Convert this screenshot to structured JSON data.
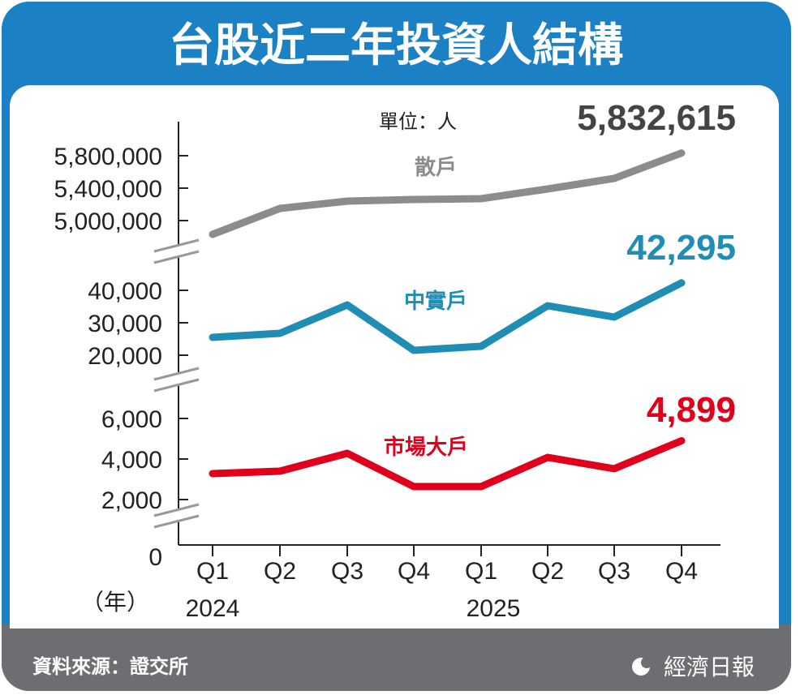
{
  "title": "台股近二年投資人結構",
  "unit": "單位：人",
  "footer": {
    "source": "資料來源：證交所",
    "brand": "經濟日報"
  },
  "colors": {
    "frame": "#1b80c4",
    "footer": "#6d6e71",
    "retail": "#8c8c8c",
    "mid": "#1f8db4",
    "large": "#e0001b"
  },
  "chart_data": {
    "type": "line",
    "title": "台股近二年投資人結構",
    "unit": "單位：人",
    "x_label": "（年）",
    "categories": [
      "Q1",
      "Q2",
      "Q3",
      "Q4",
      "Q1",
      "Q2",
      "Q3",
      "Q4"
    ],
    "years": [
      {
        "label": "2024",
        "index": 0
      },
      {
        "label": "2025",
        "index": 4
      }
    ],
    "zero_label": "0",
    "series": [
      {
        "name": "散戶",
        "key": "retail",
        "values": [
          4830000,
          5150000,
          5240000,
          5260000,
          5270000,
          5390000,
          5520000,
          5832615
        ],
        "last_label": "5,832,615",
        "ticks": [
          {
            "v": 5800000,
            "label": "5,800,000"
          },
          {
            "v": 5400000,
            "label": "5,400,000"
          },
          {
            "v": 5000000,
            "label": "5,000,000"
          }
        ]
      },
      {
        "name": "中實戶",
        "key": "mid",
        "values": [
          25500,
          26750,
          35500,
          21500,
          22750,
          35250,
          31750,
          42295
        ],
        "last_label": "42,295",
        "ticks": [
          {
            "v": 40000,
            "label": "40,000"
          },
          {
            "v": 30000,
            "label": "30,000"
          },
          {
            "v": 20000,
            "label": "20,000"
          }
        ]
      },
      {
        "name": "市場大戶",
        "key": "large",
        "values": [
          3280,
          3400,
          4280,
          2640,
          2640,
          4080,
          3520,
          4899
        ],
        "last_label": "4,899",
        "ticks": [
          {
            "v": 6000,
            "label": "6,000"
          },
          {
            "v": 4000,
            "label": "4,000"
          },
          {
            "v": 2000,
            "label": "2,000"
          }
        ]
      }
    ],
    "grid": false
  }
}
